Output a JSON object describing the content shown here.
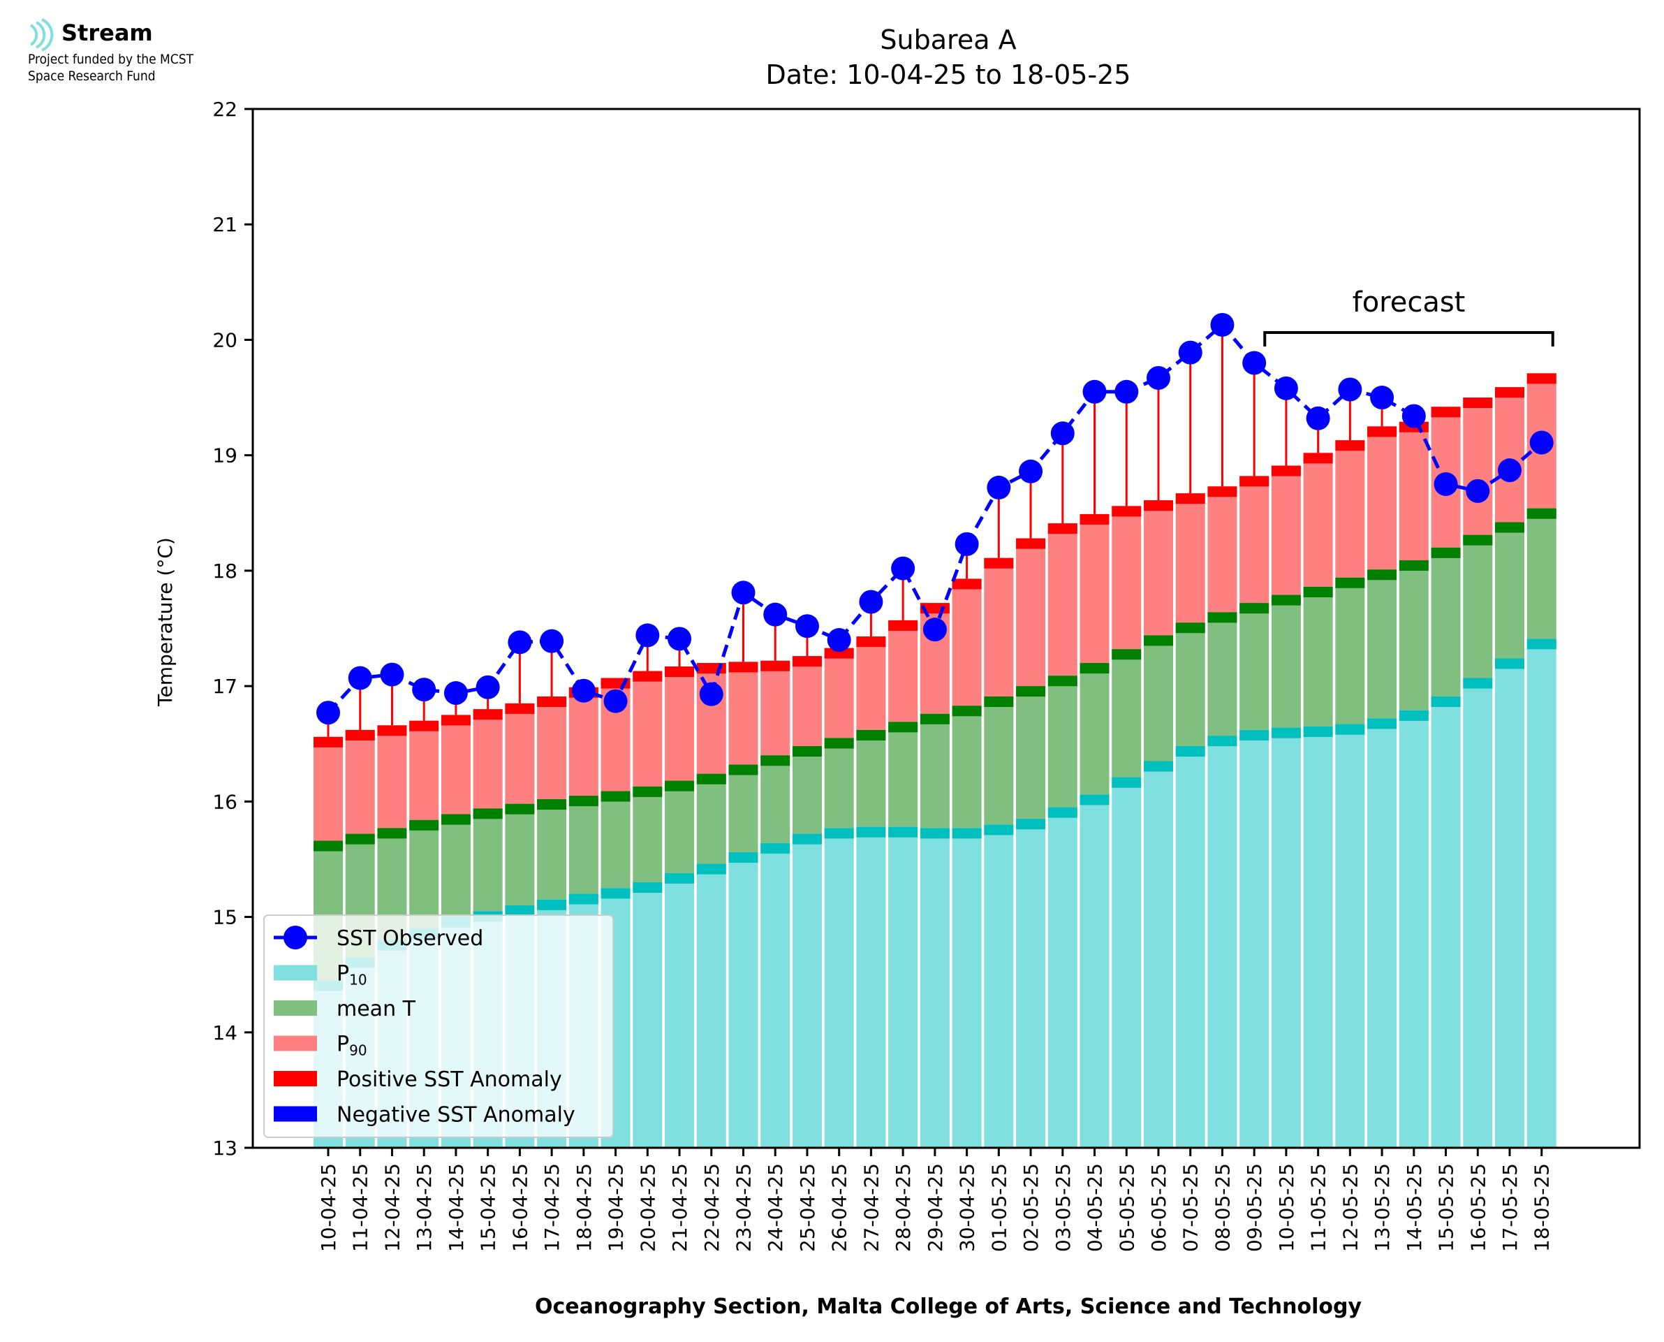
{
  "logo": {
    "name": "Stream",
    "line1": "Project funded by the MCST",
    "line2": "Space Research Fund",
    "icon": "stream-waves-icon"
  },
  "chart_data": {
    "type": "bar",
    "title": "Subarea A",
    "subtitle": "Date: 10-04-25 to 18-05-25",
    "xlabel": "Oceanography Section, Malta College of Arts, Science and Technology",
    "ylabel": "Temperature (°C)",
    "ylim": [
      13,
      22
    ],
    "yticks": [
      13,
      14,
      15,
      16,
      17,
      18,
      19,
      20,
      21,
      22
    ],
    "grid": false,
    "legend_position": "lower-left",
    "forecast_label": "forecast",
    "forecast_range": [
      "10-05-25",
      "18-05-25"
    ],
    "categories": [
      "10-04-25",
      "11-04-25",
      "12-04-25",
      "13-04-25",
      "14-04-25",
      "15-04-25",
      "16-04-25",
      "17-04-25",
      "18-04-25",
      "19-04-25",
      "20-04-25",
      "21-04-25",
      "22-04-25",
      "23-04-25",
      "24-04-25",
      "25-04-25",
      "26-04-25",
      "27-04-25",
      "28-04-25",
      "29-04-25",
      "30-04-25",
      "01-05-25",
      "02-05-25",
      "03-05-25",
      "04-05-25",
      "05-05-25",
      "06-05-25",
      "07-05-25",
      "08-05-25",
      "09-05-25",
      "10-05-25",
      "11-05-25",
      "12-05-25",
      "13-05-25",
      "14-05-25",
      "15-05-25",
      "16-05-25",
      "17-05-25",
      "18-05-25"
    ],
    "series": [
      {
        "name": "SST Observed",
        "kind": "line",
        "color": "#0000ff",
        "values": [
          16.77,
          17.07,
          17.1,
          16.97,
          16.94,
          16.99,
          17.38,
          17.39,
          16.96,
          16.87,
          17.44,
          17.41,
          16.93,
          17.81,
          17.62,
          17.52,
          17.4,
          17.73,
          18.02,
          17.49,
          18.23,
          18.72,
          18.86,
          19.19,
          19.55,
          19.55,
          19.67,
          19.89,
          20.13,
          19.8,
          19.58,
          19.32,
          19.57,
          19.5,
          19.34,
          18.75,
          18.69,
          18.87,
          19.11
        ]
      },
      {
        "name": "P10",
        "label_main": "P",
        "label_sub": "10",
        "kind": "bar",
        "color": "#80dfdf",
        "edge": "#00bfbf",
        "values": [
          14.45,
          14.65,
          14.8,
          14.9,
          15.0,
          15.05,
          15.1,
          15.15,
          15.2,
          15.25,
          15.3,
          15.38,
          15.46,
          15.56,
          15.64,
          15.72,
          15.77,
          15.78,
          15.78,
          15.77,
          15.77,
          15.8,
          15.85,
          15.95,
          16.06,
          16.21,
          16.35,
          16.48,
          16.57,
          16.62,
          16.64,
          16.65,
          16.67,
          16.72,
          16.79,
          16.91,
          17.07,
          17.24,
          17.41
        ]
      },
      {
        "name": "mean T",
        "kind": "bar",
        "color": "#80bf80",
        "edge": "#008000",
        "values": [
          15.66,
          15.72,
          15.77,
          15.84,
          15.89,
          15.94,
          15.98,
          16.02,
          16.05,
          16.09,
          16.13,
          16.18,
          16.24,
          16.32,
          16.4,
          16.48,
          16.55,
          16.62,
          16.69,
          16.76,
          16.83,
          16.91,
          17.0,
          17.09,
          17.2,
          17.32,
          17.44,
          17.55,
          17.64,
          17.72,
          17.79,
          17.86,
          17.94,
          18.01,
          18.09,
          18.2,
          18.31,
          18.42,
          18.54
        ]
      },
      {
        "name": "P90",
        "label_main": "P",
        "label_sub": "90",
        "kind": "bar",
        "color": "#ff8080",
        "edge": "#ff0000",
        "values": [
          16.56,
          16.62,
          16.66,
          16.7,
          16.75,
          16.8,
          16.85,
          16.91,
          16.99,
          17.07,
          17.13,
          17.17,
          17.2,
          17.21,
          17.22,
          17.26,
          17.33,
          17.43,
          17.57,
          17.72,
          17.93,
          18.11,
          18.28,
          18.41,
          18.49,
          18.56,
          18.61,
          18.67,
          18.73,
          18.82,
          18.91,
          19.02,
          19.13,
          19.25,
          19.29,
          19.42,
          19.5,
          19.59,
          19.71
        ]
      },
      {
        "name": "Positive SST Anomaly",
        "kind": "anomaly",
        "color": "#ff0000"
      },
      {
        "name": "Negative SST Anomaly",
        "kind": "anomaly",
        "color": "#0000ff"
      }
    ]
  }
}
